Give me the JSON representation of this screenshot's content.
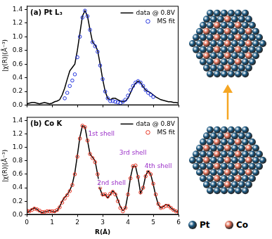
{
  "chart_data": [
    {
      "type": "line",
      "title": "(a) Pt L₃",
      "y_label": "|χ(R)|(Å⁻³)",
      "x": [
        0,
        0.1,
        0.2,
        0.3,
        0.4,
        0.5,
        0.6,
        0.7,
        0.8,
        0.9,
        1.0,
        1.1,
        1.2,
        1.3,
        1.4,
        1.5,
        1.6,
        1.7,
        1.8,
        1.9,
        2.0,
        2.1,
        2.2,
        2.3,
        2.4,
        2.5,
        2.6,
        2.7,
        2.8,
        2.9,
        3.0,
        3.1,
        3.2,
        3.3,
        3.4,
        3.5,
        3.6,
        3.7,
        3.8,
        3.9,
        4.0,
        4.1,
        4.2,
        4.3,
        4.4,
        4.5,
        4.6,
        4.7,
        4.8,
        4.9,
        5.0,
        5.1,
        5.2,
        5.3,
        5.4,
        5.5,
        5.6,
        5.7,
        5.8,
        5.9,
        6.0
      ],
      "series": [
        {
          "name": "data @ 0.8V",
          "color": "#000000",
          "line_style": "solid",
          "marker": "none",
          "values": [
            0.02,
            0.03,
            0.04,
            0.04,
            0.03,
            0.02,
            0.03,
            0.04,
            0.03,
            0.02,
            0.03,
            0.05,
            0.06,
            0.08,
            0.15,
            0.25,
            0.38,
            0.5,
            0.55,
            0.6,
            0.8,
            1.05,
            1.3,
            1.38,
            1.3,
            1.1,
            0.92,
            0.88,
            0.8,
            0.6,
            0.38,
            0.2,
            0.1,
            0.08,
            0.1,
            0.1,
            0.08,
            0.06,
            0.05,
            0.06,
            0.1,
            0.18,
            0.26,
            0.32,
            0.35,
            0.33,
            0.27,
            0.22,
            0.2,
            0.18,
            0.15,
            0.12,
            0.1,
            0.08,
            0.07,
            0.06,
            0.05,
            0.05,
            0.04,
            0.04,
            0.03
          ]
        },
        {
          "name": "MS fit",
          "color": "#2233dd",
          "line_style": "none",
          "marker": "circle",
          "values": [
            null,
            null,
            null,
            null,
            null,
            null,
            null,
            null,
            null,
            null,
            null,
            null,
            null,
            null,
            null,
            0.1,
            0.18,
            0.28,
            0.36,
            0.45,
            0.7,
            1.0,
            1.28,
            1.38,
            1.3,
            1.1,
            0.92,
            0.86,
            0.78,
            0.58,
            0.38,
            0.2,
            0.1,
            0.06,
            0.06,
            0.05,
            0.04,
            0.03,
            0.05,
            0.08,
            0.14,
            0.22,
            0.28,
            0.33,
            0.35,
            0.33,
            0.28,
            0.22,
            0.18,
            0.15,
            0.12,
            null,
            null,
            null,
            null,
            null,
            null,
            null,
            null,
            null,
            null
          ]
        }
      ],
      "xlim": [
        0,
        6
      ],
      "xticks": [
        0,
        1,
        2,
        3,
        4,
        5,
        6
      ],
      "ylim": [
        0,
        1.45
      ],
      "yticks": [
        {
          "value": 0,
          "label": "0.0"
        },
        {
          "value": 0.2,
          "label": "0.2"
        },
        {
          "value": 0.4,
          "label": "0.4"
        },
        {
          "value": 0.6,
          "label": "0.6"
        },
        {
          "value": 0.8,
          "label": "0.8"
        },
        {
          "value": 1,
          "label": "1.0"
        },
        {
          "value": 1.2,
          "label": "1.2"
        },
        {
          "value": 1.4,
          "label": "1.4"
        }
      ],
      "grid": false,
      "legend": "upper right",
      "tick_labels": "y"
    },
    {
      "type": "line",
      "title": "(b) Co K",
      "y_label": "|χ(R)|(Å⁻³)",
      "x_label": "R(Å)",
      "x": [
        0,
        0.1,
        0.2,
        0.3,
        0.4,
        0.5,
        0.6,
        0.7,
        0.8,
        0.9,
        1.0,
        1.1,
        1.2,
        1.3,
        1.4,
        1.5,
        1.6,
        1.7,
        1.8,
        1.9,
        2.0,
        2.1,
        2.2,
        2.3,
        2.4,
        2.5,
        2.6,
        2.7,
        2.8,
        2.9,
        3.0,
        3.1,
        3.2,
        3.3,
        3.4,
        3.5,
        3.6,
        3.7,
        3.8,
        3.9,
        4.0,
        4.1,
        4.2,
        4.3,
        4.4,
        4.5,
        4.6,
        4.7,
        4.8,
        4.9,
        5.0,
        5.1,
        5.2,
        5.3,
        5.4,
        5.5,
        5.6,
        5.7,
        5.8,
        5.9,
        6.0
      ],
      "series": [
        {
          "name": "data @ 0.8V",
          "color": "#000000",
          "line_style": "solid",
          "marker": "none",
          "values": [
            0.03,
            0.05,
            0.08,
            0.1,
            0.08,
            0.05,
            0.03,
            0.04,
            0.05,
            0.06,
            0.05,
            0.04,
            0.06,
            0.12,
            0.2,
            0.26,
            0.3,
            0.36,
            0.45,
            0.62,
            0.88,
            1.15,
            1.32,
            1.3,
            1.1,
            0.9,
            0.85,
            0.8,
            0.6,
            0.38,
            0.28,
            0.3,
            0.25,
            0.3,
            0.35,
            0.32,
            0.22,
            0.12,
            0.06,
            0.1,
            0.3,
            0.55,
            0.72,
            0.72,
            0.55,
            0.32,
            0.4,
            0.58,
            0.65,
            0.6,
            0.45,
            0.28,
            0.15,
            0.1,
            0.12,
            0.15,
            0.14,
            0.1,
            0.07,
            0.05,
            0.04
          ]
        },
        {
          "name": "MS fit",
          "color": "#e8301e",
          "line_style": "none",
          "marker": "circle",
          "values": [
            0.06,
            0.05,
            0.07,
            0.09,
            0.08,
            0.06,
            0.04,
            0.04,
            0.05,
            0.05,
            0.05,
            0.05,
            0.07,
            0.11,
            0.18,
            0.24,
            0.29,
            0.35,
            0.44,
            0.6,
            0.86,
            1.13,
            1.32,
            1.3,
            1.1,
            0.9,
            0.84,
            0.78,
            0.6,
            0.4,
            0.3,
            0.3,
            0.27,
            0.31,
            0.34,
            0.3,
            0.2,
            0.1,
            0.05,
            0.1,
            0.3,
            0.54,
            0.72,
            0.73,
            0.56,
            0.33,
            0.4,
            0.57,
            0.64,
            0.6,
            0.46,
            0.3,
            0.16,
            0.1,
            0.11,
            0.13,
            0.13,
            0.1,
            0.07,
            0.05,
            0.04
          ]
        }
      ],
      "annotations": [
        {
          "text": "1st shell",
          "x": 2.95,
          "y": 1.2,
          "color": "#9b30c8"
        },
        {
          "text": "2nd shell",
          "x": 3.35,
          "y": 0.47,
          "color": "#9b30c8"
        },
        {
          "text": "3rd shell",
          "x": 4.2,
          "y": 0.92,
          "color": "#9b30c8"
        },
        {
          "text": "4th shell",
          "x": 5.2,
          "y": 0.72,
          "color": "#9b30c8"
        }
      ],
      "xlim": [
        0,
        6
      ],
      "xticks": [
        0,
        1,
        2,
        3,
        4,
        5,
        6
      ],
      "ylim": [
        0,
        1.45
      ],
      "yticks": [
        {
          "value": 0,
          "label": "0.0"
        },
        {
          "value": 0.2,
          "label": "0.2"
        },
        {
          "value": 0.4,
          "label": "0.4"
        },
        {
          "value": 0.6,
          "label": "0.6"
        },
        {
          "value": 0.8,
          "label": "0.8"
        },
        {
          "value": 1,
          "label": "1.0"
        },
        {
          "value": 1.2,
          "label": "1.2"
        },
        {
          "value": 1.4,
          "label": "1.4"
        }
      ],
      "grid": false,
      "legend": "upper right"
    }
  ],
  "diagram": {
    "legend": [
      {
        "label": "Pt",
        "color": "#1c5a84"
      },
      {
        "label": "Co",
        "color": "#e2725b"
      }
    ]
  }
}
